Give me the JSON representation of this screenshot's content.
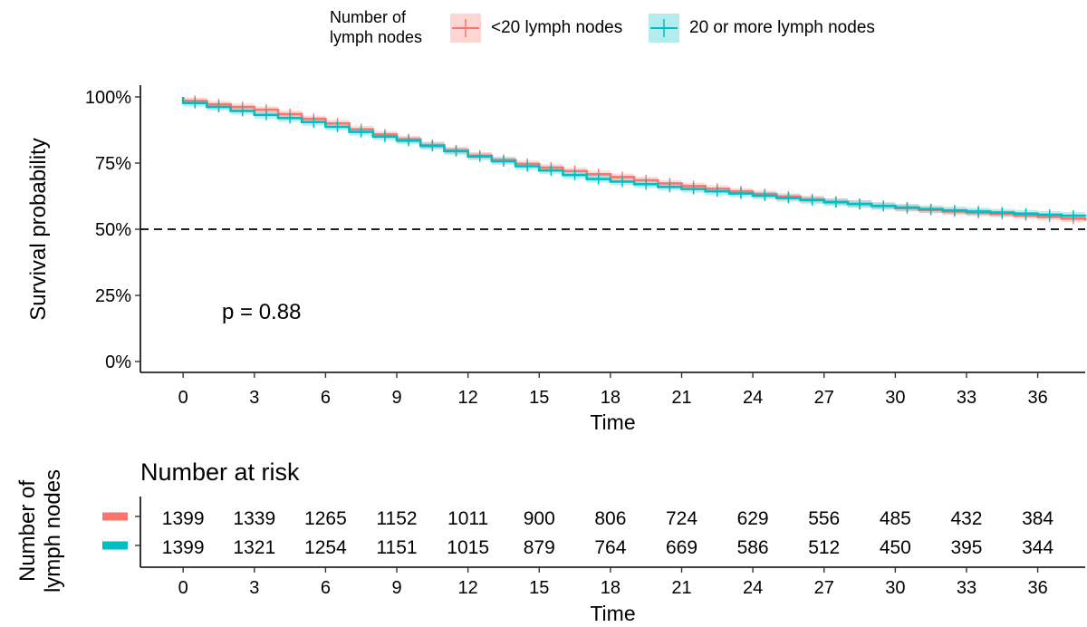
{
  "chart_data": {
    "type": "line",
    "subtype": "kaplan-meier",
    "title": "",
    "xlabel": "Time",
    "ylabel": "Survival probability",
    "xlim": [
      -1.8,
      38
    ],
    "ylim": [
      0,
      1
    ],
    "x_ticks": [
      0,
      3,
      6,
      9,
      12,
      15,
      18,
      21,
      24,
      27,
      30,
      33,
      36
    ],
    "y_ticks": [
      0,
      0.25,
      0.5,
      0.75,
      1
    ],
    "y_tick_labels": [
      "0%",
      "25%",
      "50%",
      "75%",
      "100%"
    ],
    "reference_line_y": 0.5,
    "reference_line_style": "dashed",
    "annotation": "p = 0.88",
    "grid": false,
    "legend": {
      "title": "Number of\nlymph nodes",
      "placement": "top",
      "entries": [
        "<20 lymph nodes",
        "20 or more lymph nodes"
      ]
    },
    "series": [
      {
        "name": "<20 lymph nodes",
        "color": "#F8766D",
        "x": [
          0,
          1,
          2,
          3,
          4,
          5,
          6,
          7,
          8,
          9,
          10,
          11,
          12,
          13,
          14,
          15,
          16,
          17,
          18,
          19,
          20,
          21,
          22,
          23,
          24,
          25,
          26,
          27,
          28,
          29,
          30,
          31,
          32,
          33,
          34,
          35,
          36,
          37,
          38
        ],
        "values": [
          0.985,
          0.972,
          0.962,
          0.952,
          0.935,
          0.917,
          0.9,
          0.878,
          0.858,
          0.84,
          0.818,
          0.798,
          0.778,
          0.762,
          0.747,
          0.733,
          0.72,
          0.708,
          0.697,
          0.685,
          0.673,
          0.663,
          0.653,
          0.643,
          0.633,
          0.623,
          0.613,
          0.604,
          0.596,
          0.588,
          0.58,
          0.573,
          0.567,
          0.562,
          0.558,
          0.552,
          0.547,
          0.54,
          0.532
        ],
        "ci_halfwidth": 0.013
      },
      {
        "name": "20 or more lymph nodes",
        "color": "#00BFC4",
        "x": [
          0,
          1,
          2,
          3,
          4,
          5,
          6,
          7,
          8,
          9,
          10,
          11,
          12,
          13,
          14,
          15,
          16,
          17,
          18,
          19,
          20,
          21,
          22,
          23,
          24,
          25,
          26,
          27,
          28,
          29,
          30,
          31,
          32,
          33,
          34,
          35,
          36,
          37,
          38
        ],
        "values": [
          0.977,
          0.962,
          0.947,
          0.932,
          0.92,
          0.905,
          0.887,
          0.868,
          0.85,
          0.835,
          0.815,
          0.795,
          0.775,
          0.757,
          0.738,
          0.722,
          0.705,
          0.69,
          0.68,
          0.67,
          0.66,
          0.652,
          0.643,
          0.635,
          0.627,
          0.618,
          0.61,
          0.602,
          0.595,
          0.588,
          0.582,
          0.576,
          0.571,
          0.567,
          0.563,
          0.559,
          0.555,
          0.551,
          0.547
        ],
        "ci_halfwidth": 0.014
      }
    ],
    "risk_table": {
      "title": "Number at risk",
      "ylabel": "Number of\nlymph nodes",
      "xlabel": "Time",
      "x_ticks": [
        0,
        3,
        6,
        9,
        12,
        15,
        18,
        21,
        24,
        27,
        30,
        33,
        36
      ],
      "rows": [
        {
          "name": "<20 lymph nodes",
          "color": "#F8766D",
          "counts": [
            1399,
            1339,
            1265,
            1152,
            1011,
            900,
            806,
            724,
            629,
            556,
            485,
            432,
            384
          ]
        },
        {
          "name": "20 or more lymph nodes",
          "color": "#00BFC4",
          "counts": [
            1399,
            1321,
            1254,
            1151,
            1015,
            879,
            764,
            669,
            586,
            512,
            450,
            395,
            344
          ]
        }
      ]
    }
  }
}
